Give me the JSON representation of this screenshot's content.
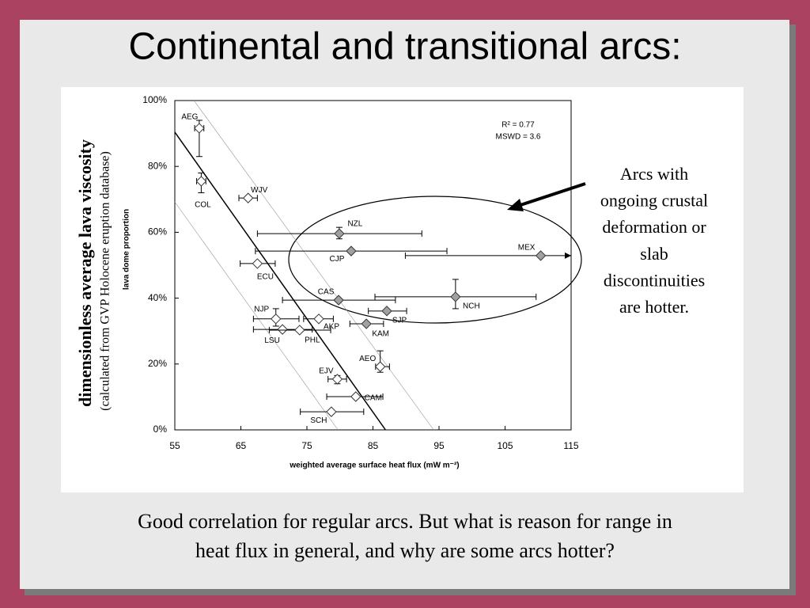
{
  "slide": {
    "title": "Continental and transitional arcs:",
    "y_overlay_label": "dimensionless average lava viscosity",
    "y_overlay_sublabel": "(calculated from GVP Holocene eruption database)",
    "annotation": [
      "Arcs with",
      "ongoing crustal",
      "deformation or",
      "slab",
      "discontinuities",
      "are hotter."
    ],
    "caption": [
      "Good correlation for regular arcs. But what is reason for range in",
      "heat flux in general, and why are some arcs hotter?"
    ]
  },
  "chart_data": {
    "type": "scatter",
    "x_label": "weighted average surface heat flux (mW m⁻²)",
    "y_label": "lava dome proportion",
    "annotations": [
      "R² = 0.77",
      "MSWD = 3.6"
    ],
    "labels": [
      "AEG",
      "COL",
      "WJV",
      "NZL",
      "CJP",
      "MEX",
      "ECU",
      "CAS",
      "NCH",
      "SJP",
      "NJP",
      "AKP",
      "KAM",
      "LSU",
      "PHL",
      "AEO",
      "EJV",
      "CAM",
      "SCH"
    ],
    "x": [
      58.7,
      59.0,
      66.1,
      79.9,
      81.7,
      110.4,
      67.5,
      79.8,
      97.5,
      87.1,
      70.3,
      76.8,
      84.0,
      71.3,
      73.9,
      86.1,
      79.6,
      82.4,
      78.7
    ],
    "values": [
      91.6,
      75.5,
      70.4,
      59.6,
      54.3,
      52.9,
      50.5,
      39.4,
      40.4,
      36.1,
      33.7,
      33.7,
      32.2,
      30.5,
      30.3,
      19.2,
      15.4,
      10.1,
      5.5
    ],
    "x_low": [
      58.0,
      58.3,
      64.7,
      67.5,
      67.2,
      89.9,
      64.9,
      71.3,
      85.3,
      84.3,
      66.9,
      74.5,
      81.5,
      66.9,
      69.3,
      85.4,
      78.2,
      78.0,
      74.0
    ],
    "x_high": [
      59.4,
      59.7,
      67.5,
      92.4,
      96.2,
      115,
      70.2,
      88.4,
      109.7,
      90.1,
      73.8,
      79.0,
      86.6,
      75.8,
      78.6,
      87.5,
      81.0,
      86.5,
      83.6
    ],
    "y_low": [
      83,
      72,
      null,
      58,
      null,
      null,
      null,
      null,
      36.8,
      null,
      31.5,
      null,
      null,
      null,
      null,
      17.5,
      14,
      null,
      null
    ],
    "y_high": [
      94,
      78,
      null,
      61.5,
      null,
      null,
      null,
      null,
      45.7,
      null,
      36.8,
      null,
      null,
      null,
      null,
      24,
      16.5,
      null,
      null
    ],
    "colors": [
      "#ffffff",
      "#ffffff",
      "#ffffff",
      "#a0a0a0",
      "#a0a0a0",
      "#a0a0a0",
      "#ffffff",
      "#a0a0a0",
      "#a0a0a0",
      "#a0a0a0",
      "#ffffff",
      "#ffffff",
      "#a0a0a0",
      "#ffffff",
      "#ffffff",
      "#ffffff",
      "#ffffff",
      "#ffffff",
      "#ffffff"
    ],
    "fit_lines": [
      {
        "x": [
          55,
          86.9
        ],
        "y": [
          90.4,
          0
        ]
      },
      {
        "x": [
          57.9,
          94.2
        ],
        "y": [
          100,
          0
        ]
      },
      {
        "x": [
          55,
          79.7
        ],
        "y": [
          69.2,
          0
        ]
      }
    ],
    "xlim": [
      55,
      115
    ],
    "ylim": [
      0,
      100
    ],
    "xticks": [
      55,
      65,
      75,
      85,
      95,
      105,
      115
    ],
    "yticks": [
      {
        "value": 0,
        "label": "0%"
      },
      {
        "value": 20,
        "label": "20%"
      },
      {
        "value": 40,
        "label": "40%"
      },
      {
        "value": 60,
        "label": "60%"
      },
      {
        "value": 80,
        "label": "80%"
      },
      {
        "value": 100,
        "label": "100%"
      }
    ]
  }
}
